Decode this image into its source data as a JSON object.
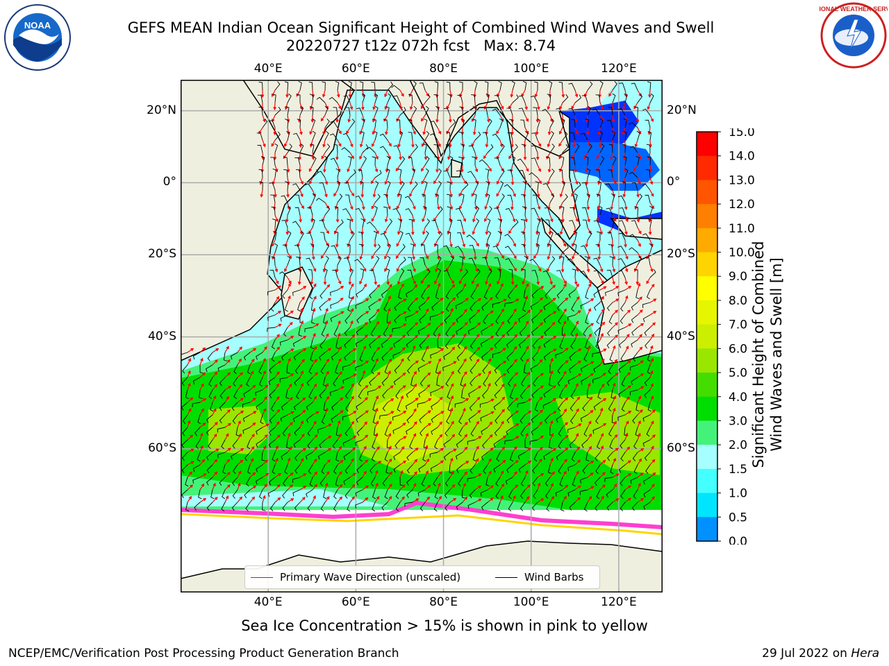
{
  "title": {
    "line1": "GEFS MEAN Indian Ocean Significant Height of Combined Wind Waves and Swell",
    "line2": "20220727 t12z 072h fcst   Max: 8.74"
  },
  "map": {
    "lon_ticks_top": [
      "40°E",
      "60°E",
      "80°E",
      "100°E",
      "120°E"
    ],
    "lon_ticks_bottom": [
      "40°E",
      "60°E",
      "80°E",
      "100°E",
      "120°E"
    ],
    "lat_ticks_left": [
      "20°N",
      "0°",
      "20°S",
      "40°S",
      "60°S"
    ],
    "lat_ticks_right": [
      "20°N",
      "0°",
      "20°S",
      "40°S",
      "60°S"
    ],
    "lon_values": [
      40,
      60,
      80,
      100,
      120
    ],
    "lat_values": [
      20,
      0,
      -20,
      -40,
      -60
    ],
    "extent": {
      "lon_min": 20,
      "lon_max": 130,
      "lat_min": -75,
      "lat_max": 28
    },
    "max_wave_height_m": 8.74
  },
  "legend": {
    "items": [
      {
        "label": "Primary Wave Direction (unscaled)",
        "color": "#ff0000"
      },
      {
        "label": "Wind Barbs",
        "color": "#000000"
      }
    ]
  },
  "colorbar": {
    "title_line1": "Significant Height of Combined",
    "title_line2": "Wind Waves and Swell [m]",
    "ticks": [
      "15.0",
      "14.0",
      "13.0",
      "12.0",
      "11.0",
      "10.0",
      "9.0",
      "8.0",
      "7.0",
      "6.0",
      "5.0",
      "4.0",
      "3.0",
      "2.0",
      "1.5",
      "1.0",
      "0.5",
      "0.0"
    ],
    "colors": [
      "#ff0000",
      "#ff2a00",
      "#ff5500",
      "#ff7f00",
      "#ffaa00",
      "#ffd400",
      "#ffff00",
      "#e6f500",
      "#ccee00",
      "#99e600",
      "#44dd00",
      "#00dd00",
      "#44f27a",
      "#a6ffff",
      "#44ffff",
      "#00e5ff",
      "#0090ff",
      "#0000ff"
    ]
  },
  "caption": "Sea Ice Concentration > 15% is shown in pink to yellow",
  "footer": {
    "left": "NCEP/EMC/Verification Post Processing Product Generation Branch",
    "right_date": "29 Jul 2022 on ",
    "right_host": "Hera"
  },
  "logos": {
    "noaa_text": "NOAA",
    "nws_text": "NATIONAL WEATHER SERVICE"
  }
}
